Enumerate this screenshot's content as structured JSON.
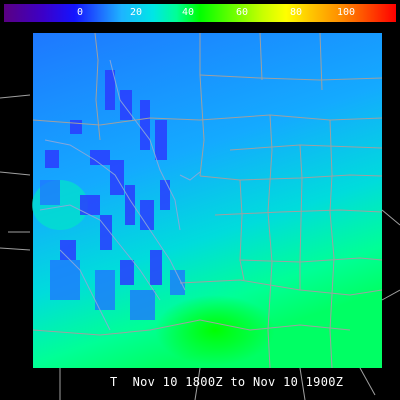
{
  "colorbar": {
    "ticks": [
      "0",
      "20",
      "40",
      "60",
      "80",
      "100"
    ],
    "colors": [
      "#5a0082",
      "#1414ff",
      "#00e6e6",
      "#00ff00",
      "#ffff00",
      "#ff0000"
    ]
  },
  "map": {
    "background": "#000000",
    "boundary_color": "#a0a0a0",
    "field_colors": {
      "deep_blue": "#2a3cff",
      "blue": "#1e78ff",
      "light_blue": "#14aaff",
      "cyan": "#00dcdc",
      "green": "#00ff64",
      "bright_green": "#00ff00"
    }
  },
  "caption": {
    "text": "T  Nov 10 1800Z to Nov 10 1900Z"
  }
}
